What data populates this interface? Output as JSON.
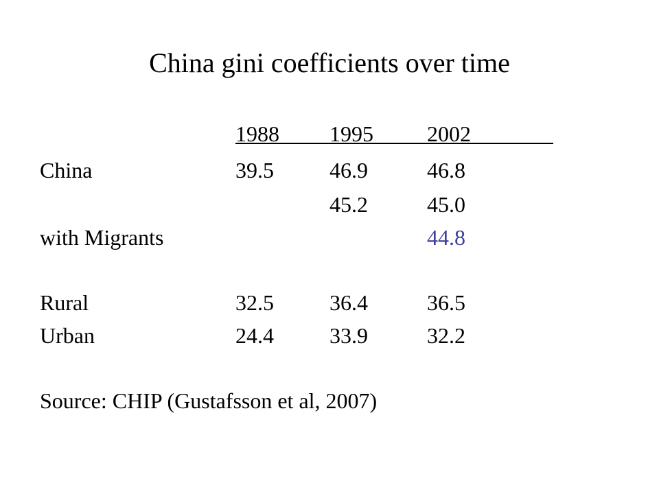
{
  "slide": {
    "title": "China gini coefficients over time"
  },
  "table": {
    "years": [
      "1988",
      "1995",
      "2002"
    ],
    "rows": [
      {
        "label": "China",
        "values": [
          "39.5",
          "46.9",
          "46.8"
        ]
      },
      {
        "label": "",
        "values": [
          "",
          "45.2",
          "45.0"
        ]
      },
      {
        "label": "with Migrants",
        "values": [
          "",
          "",
          "44.8"
        ]
      },
      {
        "label": "Rural",
        "values": [
          "32.5",
          "36.4",
          "36.5"
        ]
      },
      {
        "label": "Urban",
        "values": [
          "24.4",
          "33.9",
          "32.2"
        ]
      }
    ],
    "highlight_color": "#3f3f9c"
  },
  "source": "Source: CHIP (Gustafsson et al, 2007)"
}
